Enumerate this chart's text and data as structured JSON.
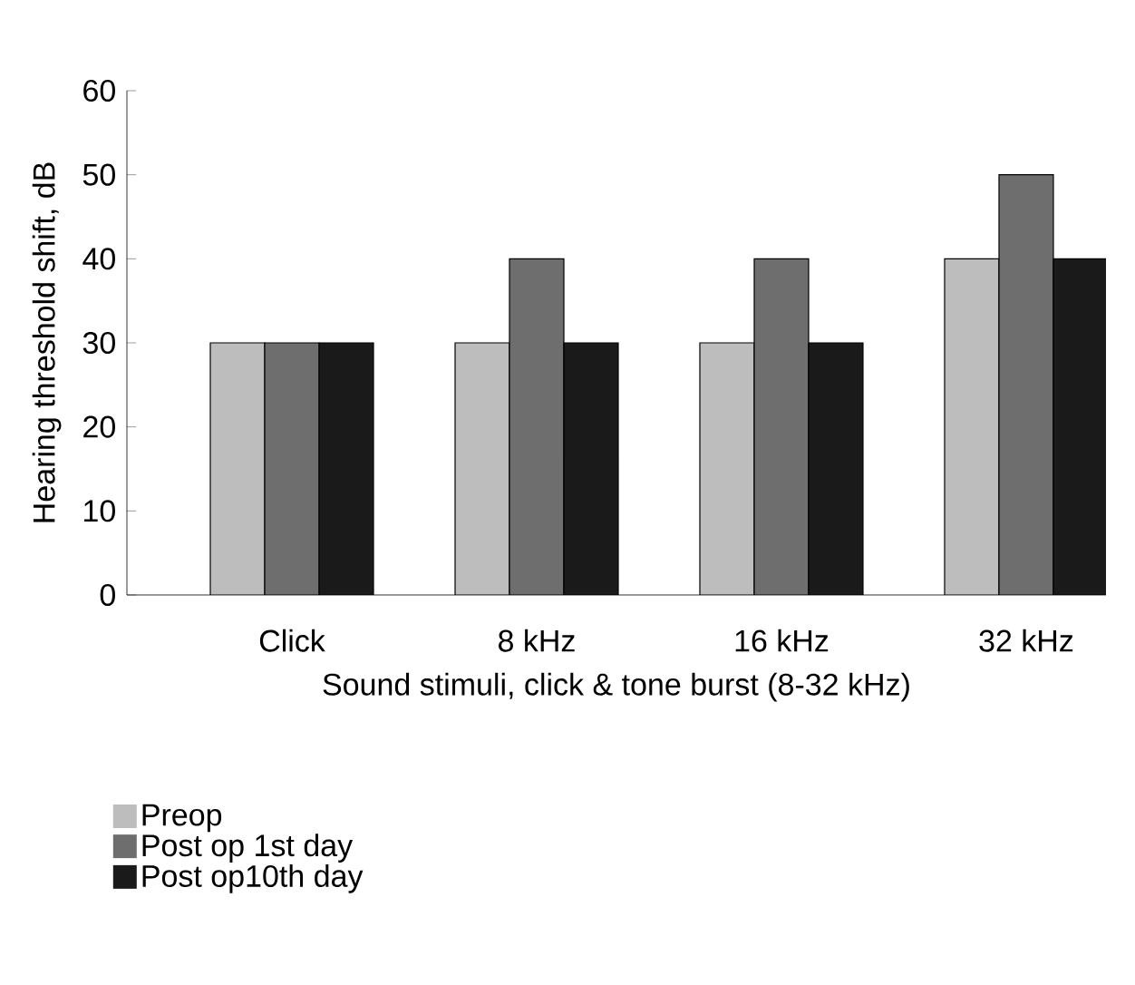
{
  "chart_data": {
    "type": "bar",
    "xlabel": "Sound stimuli, click & tone burst (8-32 kHz)",
    "ylabel": "Hearing threshold shift, dB",
    "categories": [
      "Click",
      "8 kHz",
      "16 kHz",
      "32 kHz"
    ],
    "series": [
      {
        "name": "Preop",
        "color": "#bdbdbd",
        "values": [
          30,
          30,
          30,
          40
        ]
      },
      {
        "name": "Post op 1st day",
        "color": "#6e6e6e",
        "values": [
          30,
          40,
          40,
          50
        ]
      },
      {
        "name": "Post op10th day",
        "color": "#1a1a1a",
        "values": [
          30,
          30,
          30,
          40
        ]
      }
    ],
    "ylim": [
      0,
      60
    ],
    "yticks": [
      0,
      10,
      20,
      30,
      40,
      50,
      60
    ],
    "grid": false,
    "legend": "bottom left"
  }
}
